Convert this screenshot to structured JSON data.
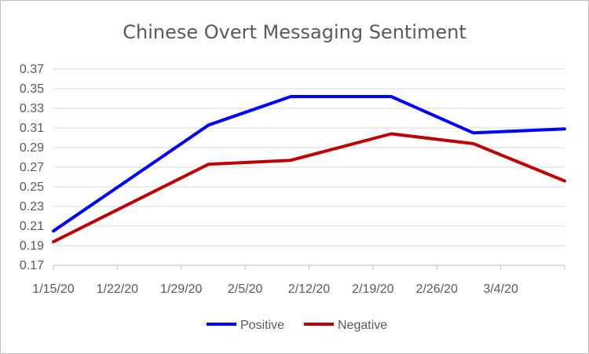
{
  "colors": {
    "positive": "#0000ff",
    "negative": "#c00000",
    "grid": "#d9d9d9",
    "axis": "#bfbfbf"
  },
  "chart_data": {
    "type": "line",
    "title": "Chinese Overt Messaging Sentiment",
    "xlabel": "",
    "ylabel": "",
    "x_ticks": [
      "1/15/20",
      "1/22/20",
      "1/29/20",
      "2/5/20",
      "2/12/20",
      "2/19/20",
      "2/26/20",
      "3/4/20"
    ],
    "x_tick_dates": [
      "2020-01-15",
      "2020-01-22",
      "2020-01-29",
      "2020-02-05",
      "2020-02-12",
      "2020-02-19",
      "2020-02-26",
      "2020-03-04"
    ],
    "x": [
      "2020-01-15",
      "2020-02-01",
      "2020-02-10",
      "2020-02-21",
      "2020-03-01",
      "2020-03-11"
    ],
    "xlim": [
      "2020-01-15",
      "2020-03-11"
    ],
    "ylim": [
      0.17,
      0.37
    ],
    "y_ticks": [
      "0.17",
      "0.19",
      "0.21",
      "0.23",
      "0.25",
      "0.27",
      "0.29",
      "0.31",
      "0.33",
      "0.35",
      "0.37"
    ],
    "grid": "horizontal",
    "legend_position": "bottom",
    "series": [
      {
        "name": "Positive",
        "color": "#0000ff",
        "values": [
          0.205,
          0.313,
          0.342,
          0.342,
          0.305,
          0.309
        ]
      },
      {
        "name": "Negative",
        "color": "#c00000",
        "values": [
          0.194,
          0.273,
          0.277,
          0.304,
          0.294,
          0.256
        ]
      }
    ]
  }
}
